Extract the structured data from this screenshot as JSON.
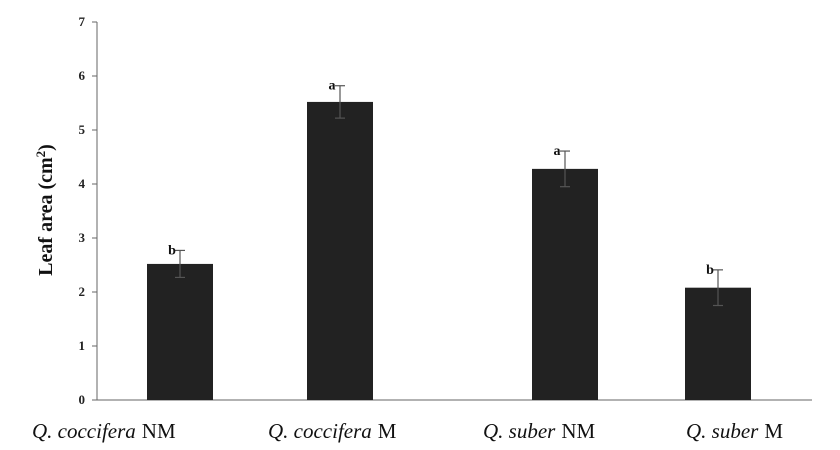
{
  "chart_data": {
    "type": "bar",
    "ylabel": "Leaf area (cm",
    "ylabel_sup": "2",
    "ylabel_end": ")",
    "ylim": [
      0,
      7
    ],
    "yticks": [
      "0",
      "1",
      "2",
      "3",
      "4",
      "5",
      "6",
      "7"
    ],
    "grid": false,
    "bar_color": "#222222",
    "categories": [
      {
        "species": "Q. coccifera",
        "treatment": "NM",
        "value": 2.52,
        "error": 0.25,
        "letter": "b"
      },
      {
        "species": "Q. coccifera",
        "treatment": "M",
        "value": 5.52,
        "error": 0.3,
        "letter": "a"
      },
      {
        "species": "Q. suber",
        "treatment": "NM",
        "value": 4.28,
        "error": 0.33,
        "letter": "a"
      },
      {
        "species": "Q. suber",
        "treatment": "M",
        "value": 2.08,
        "error": 0.33,
        "letter": "b"
      }
    ]
  }
}
